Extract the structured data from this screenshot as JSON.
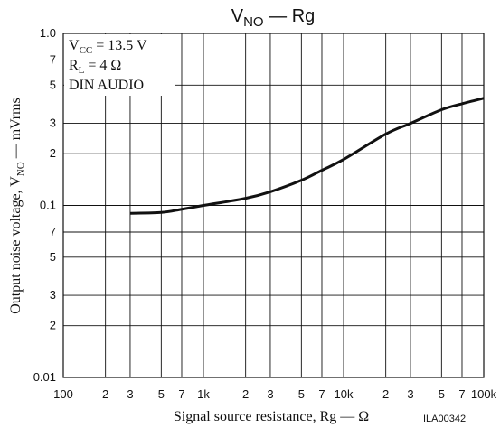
{
  "chart_data": {
    "type": "line",
    "title": {
      "base": "V",
      "sub": "NO",
      "rest": " — Rg"
    },
    "x_label": "Signal source resistance, Rg — Ω",
    "y_label": {
      "base": "Output noise voltage, V",
      "sub": "NO",
      "rest": " — mVrms"
    },
    "annotations": [
      {
        "base": "V",
        "sub": "CC",
        "rest": " = 13.5 V"
      },
      {
        "base": "R",
        "sub": "L",
        "rest": " = 4 Ω"
      },
      {
        "base": "DIN AUDIO"
      }
    ],
    "code": "ILA00342",
    "x_log": true,
    "y_log": true,
    "grid": true,
    "xlim": [
      100,
      100000
    ],
    "ylim": [
      0.01,
      1.0
    ],
    "xticks": [
      100,
      {
        "value": 200,
        "label": "2"
      },
      {
        "value": 300,
        "label": "3"
      },
      {
        "value": 500,
        "label": "5"
      },
      {
        "value": 700,
        "label": "7"
      },
      {
        "value": 1000,
        "label": "1k"
      },
      {
        "value": 2000,
        "label": "2"
      },
      {
        "value": 3000,
        "label": "3"
      },
      {
        "value": 5000,
        "label": "5"
      },
      {
        "value": 7000,
        "label": "7"
      },
      {
        "value": 10000,
        "label": "10k"
      },
      {
        "value": 20000,
        "label": "2"
      },
      {
        "value": 30000,
        "label": "3"
      },
      {
        "value": 50000,
        "label": "5"
      },
      {
        "value": 70000,
        "label": "7"
      },
      {
        "value": 100000,
        "label": "100k"
      }
    ],
    "yticks": [
      {
        "value": 1.0,
        "label": "1.0"
      },
      {
        "value": 0.7,
        "label": "7"
      },
      {
        "value": 0.5,
        "label": "5"
      },
      {
        "value": 0.3,
        "label": "3"
      },
      {
        "value": 0.2,
        "label": "2"
      },
      0.1,
      {
        "value": 0.07,
        "label": "7"
      },
      {
        "value": 0.05,
        "label": "5"
      },
      {
        "value": 0.03,
        "label": "3"
      },
      {
        "value": 0.02,
        "label": "2"
      },
      0.01
    ],
    "x": [
      300,
      500,
      700,
      1000,
      2000,
      3000,
      5000,
      7000,
      10000,
      20000,
      30000,
      50000,
      70000,
      100000
    ],
    "values": [
      0.09,
      0.091,
      0.095,
      0.1,
      0.11,
      0.12,
      0.14,
      0.16,
      0.185,
      0.26,
      0.3,
      0.36,
      0.39,
      0.42
    ],
    "color": "#111111"
  }
}
